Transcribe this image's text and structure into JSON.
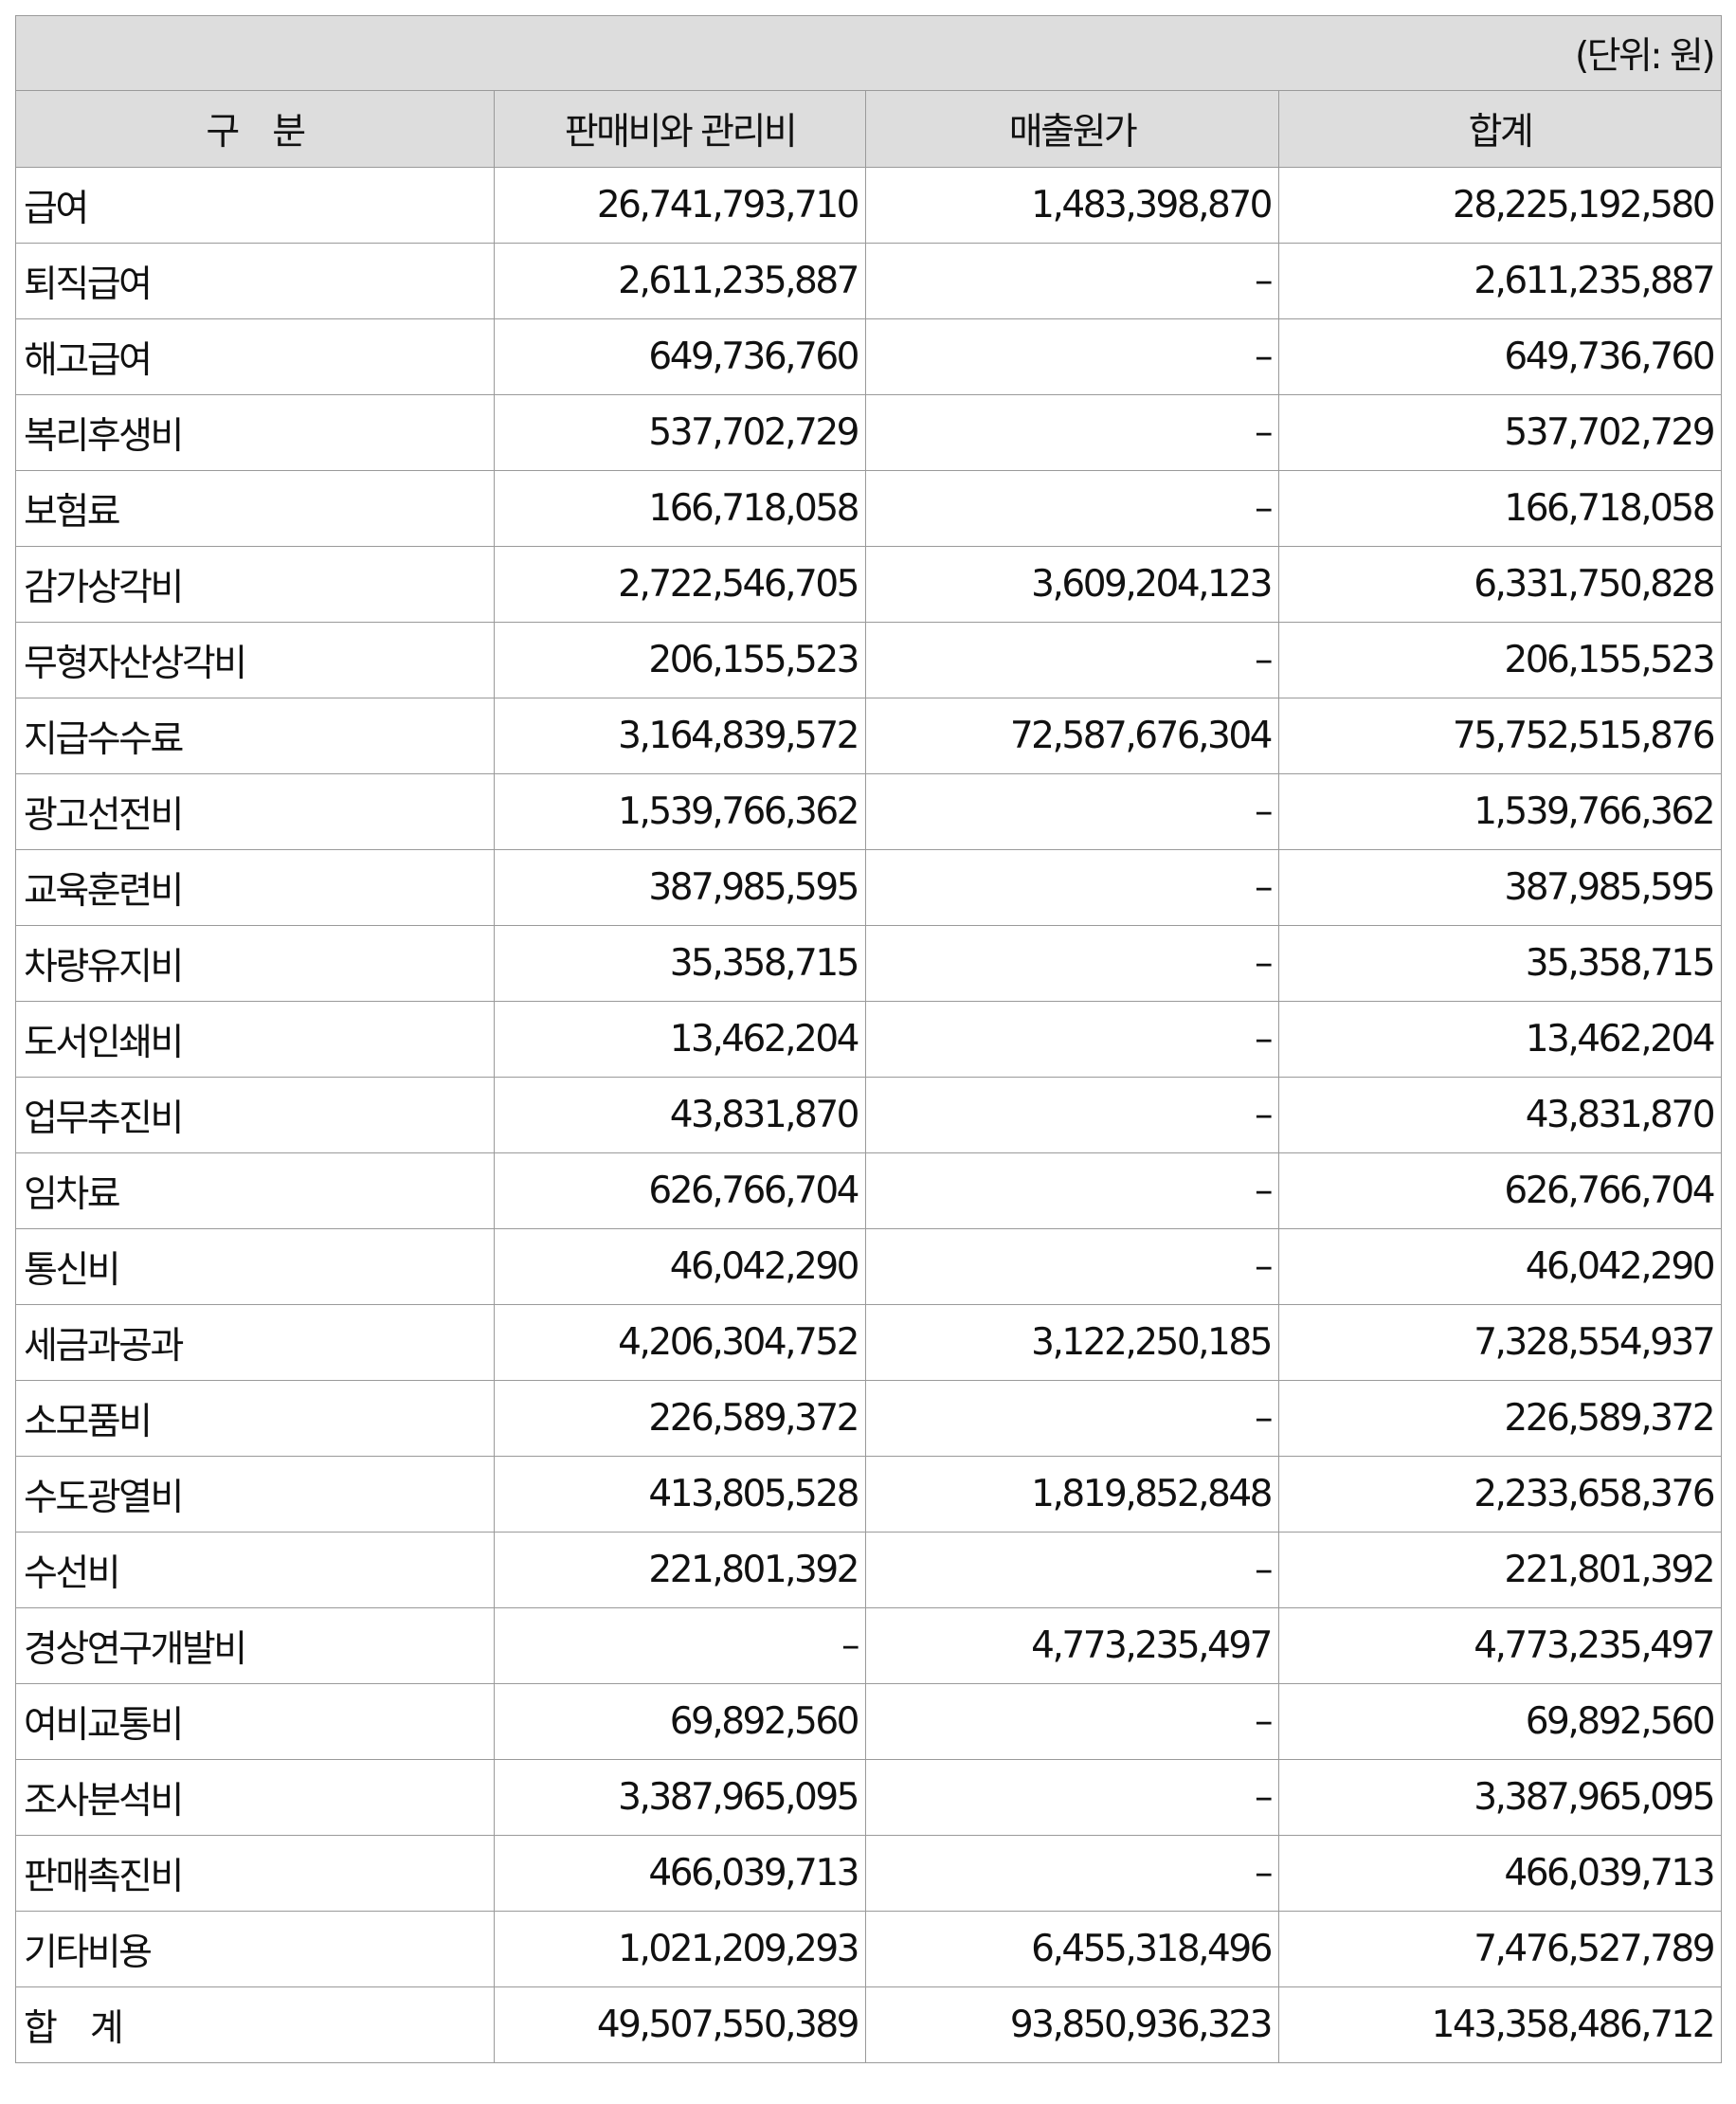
{
  "unit_label": "(단위: 원)",
  "headers": {
    "category": "구　분",
    "sga": "판매비와 관리비",
    "cost_of_sales": "매출원가",
    "total": "합계"
  },
  "rows": [
    {
      "label": "급여",
      "sga": "26,741,793,710",
      "cost": "1,483,398,870",
      "total": "28,225,192,580"
    },
    {
      "label": "퇴직급여",
      "sga": "2,611,235,887",
      "cost": "–",
      "total": "2,611,235,887"
    },
    {
      "label": "해고급여",
      "sga": "649,736,760",
      "cost": "–",
      "total": "649,736,760"
    },
    {
      "label": "복리후생비",
      "sga": "537,702,729",
      "cost": "–",
      "total": "537,702,729"
    },
    {
      "label": "보험료",
      "sga": "166,718,058",
      "cost": "–",
      "total": "166,718,058"
    },
    {
      "label": "감가상각비",
      "sga": "2,722,546,705",
      "cost": "3,609,204,123",
      "total": "6,331,750,828"
    },
    {
      "label": "무형자산상각비",
      "sga": "206,155,523",
      "cost": "–",
      "total": "206,155,523"
    },
    {
      "label": "지급수수료",
      "sga": "3,164,839,572",
      "cost": "72,587,676,304",
      "total": "75,752,515,876"
    },
    {
      "label": "광고선전비",
      "sga": "1,539,766,362",
      "cost": "–",
      "total": "1,539,766,362"
    },
    {
      "label": "교육훈련비",
      "sga": "387,985,595",
      "cost": "–",
      "total": "387,985,595"
    },
    {
      "label": "차량유지비",
      "sga": "35,358,715",
      "cost": "–",
      "total": "35,358,715"
    },
    {
      "label": "도서인쇄비",
      "sga": "13,462,204",
      "cost": "–",
      "total": "13,462,204"
    },
    {
      "label": "업무추진비",
      "sga": "43,831,870",
      "cost": "–",
      "total": "43,831,870"
    },
    {
      "label": "임차료",
      "sga": "626,766,704",
      "cost": "–",
      "total": "626,766,704"
    },
    {
      "label": "통신비",
      "sga": "46,042,290",
      "cost": "–",
      "total": "46,042,290"
    },
    {
      "label": "세금과공과",
      "sga": "4,206,304,752",
      "cost": "3,122,250,185",
      "total": "7,328,554,937"
    },
    {
      "label": "소모품비",
      "sga": "226,589,372",
      "cost": "–",
      "total": "226,589,372"
    },
    {
      "label": "수도광열비",
      "sga": "413,805,528",
      "cost": "1,819,852,848",
      "total": "2,233,658,376"
    },
    {
      "label": "수선비",
      "sga": "221,801,392",
      "cost": "–",
      "total": "221,801,392"
    },
    {
      "label": "경상연구개발비",
      "sga": "–",
      "cost": "4,773,235,497",
      "total": "4,773,235,497"
    },
    {
      "label": "여비교통비",
      "sga": "69,892,560",
      "cost": "–",
      "total": "69,892,560"
    },
    {
      "label": "조사분석비",
      "sga": "3,387,965,095",
      "cost": "–",
      "total": "3,387,965,095"
    },
    {
      "label": "판매촉진비",
      "sga": "466,039,713",
      "cost": "–",
      "total": "466,039,713"
    },
    {
      "label": "기타비용",
      "sga": "1,021,209,293",
      "cost": "6,455,318,496",
      "total": "7,476,527,789"
    }
  ],
  "total_row": {
    "label": "합　계",
    "sga": "49,507,550,389",
    "cost": "93,850,936,323",
    "total": "143,358,486,712"
  }
}
